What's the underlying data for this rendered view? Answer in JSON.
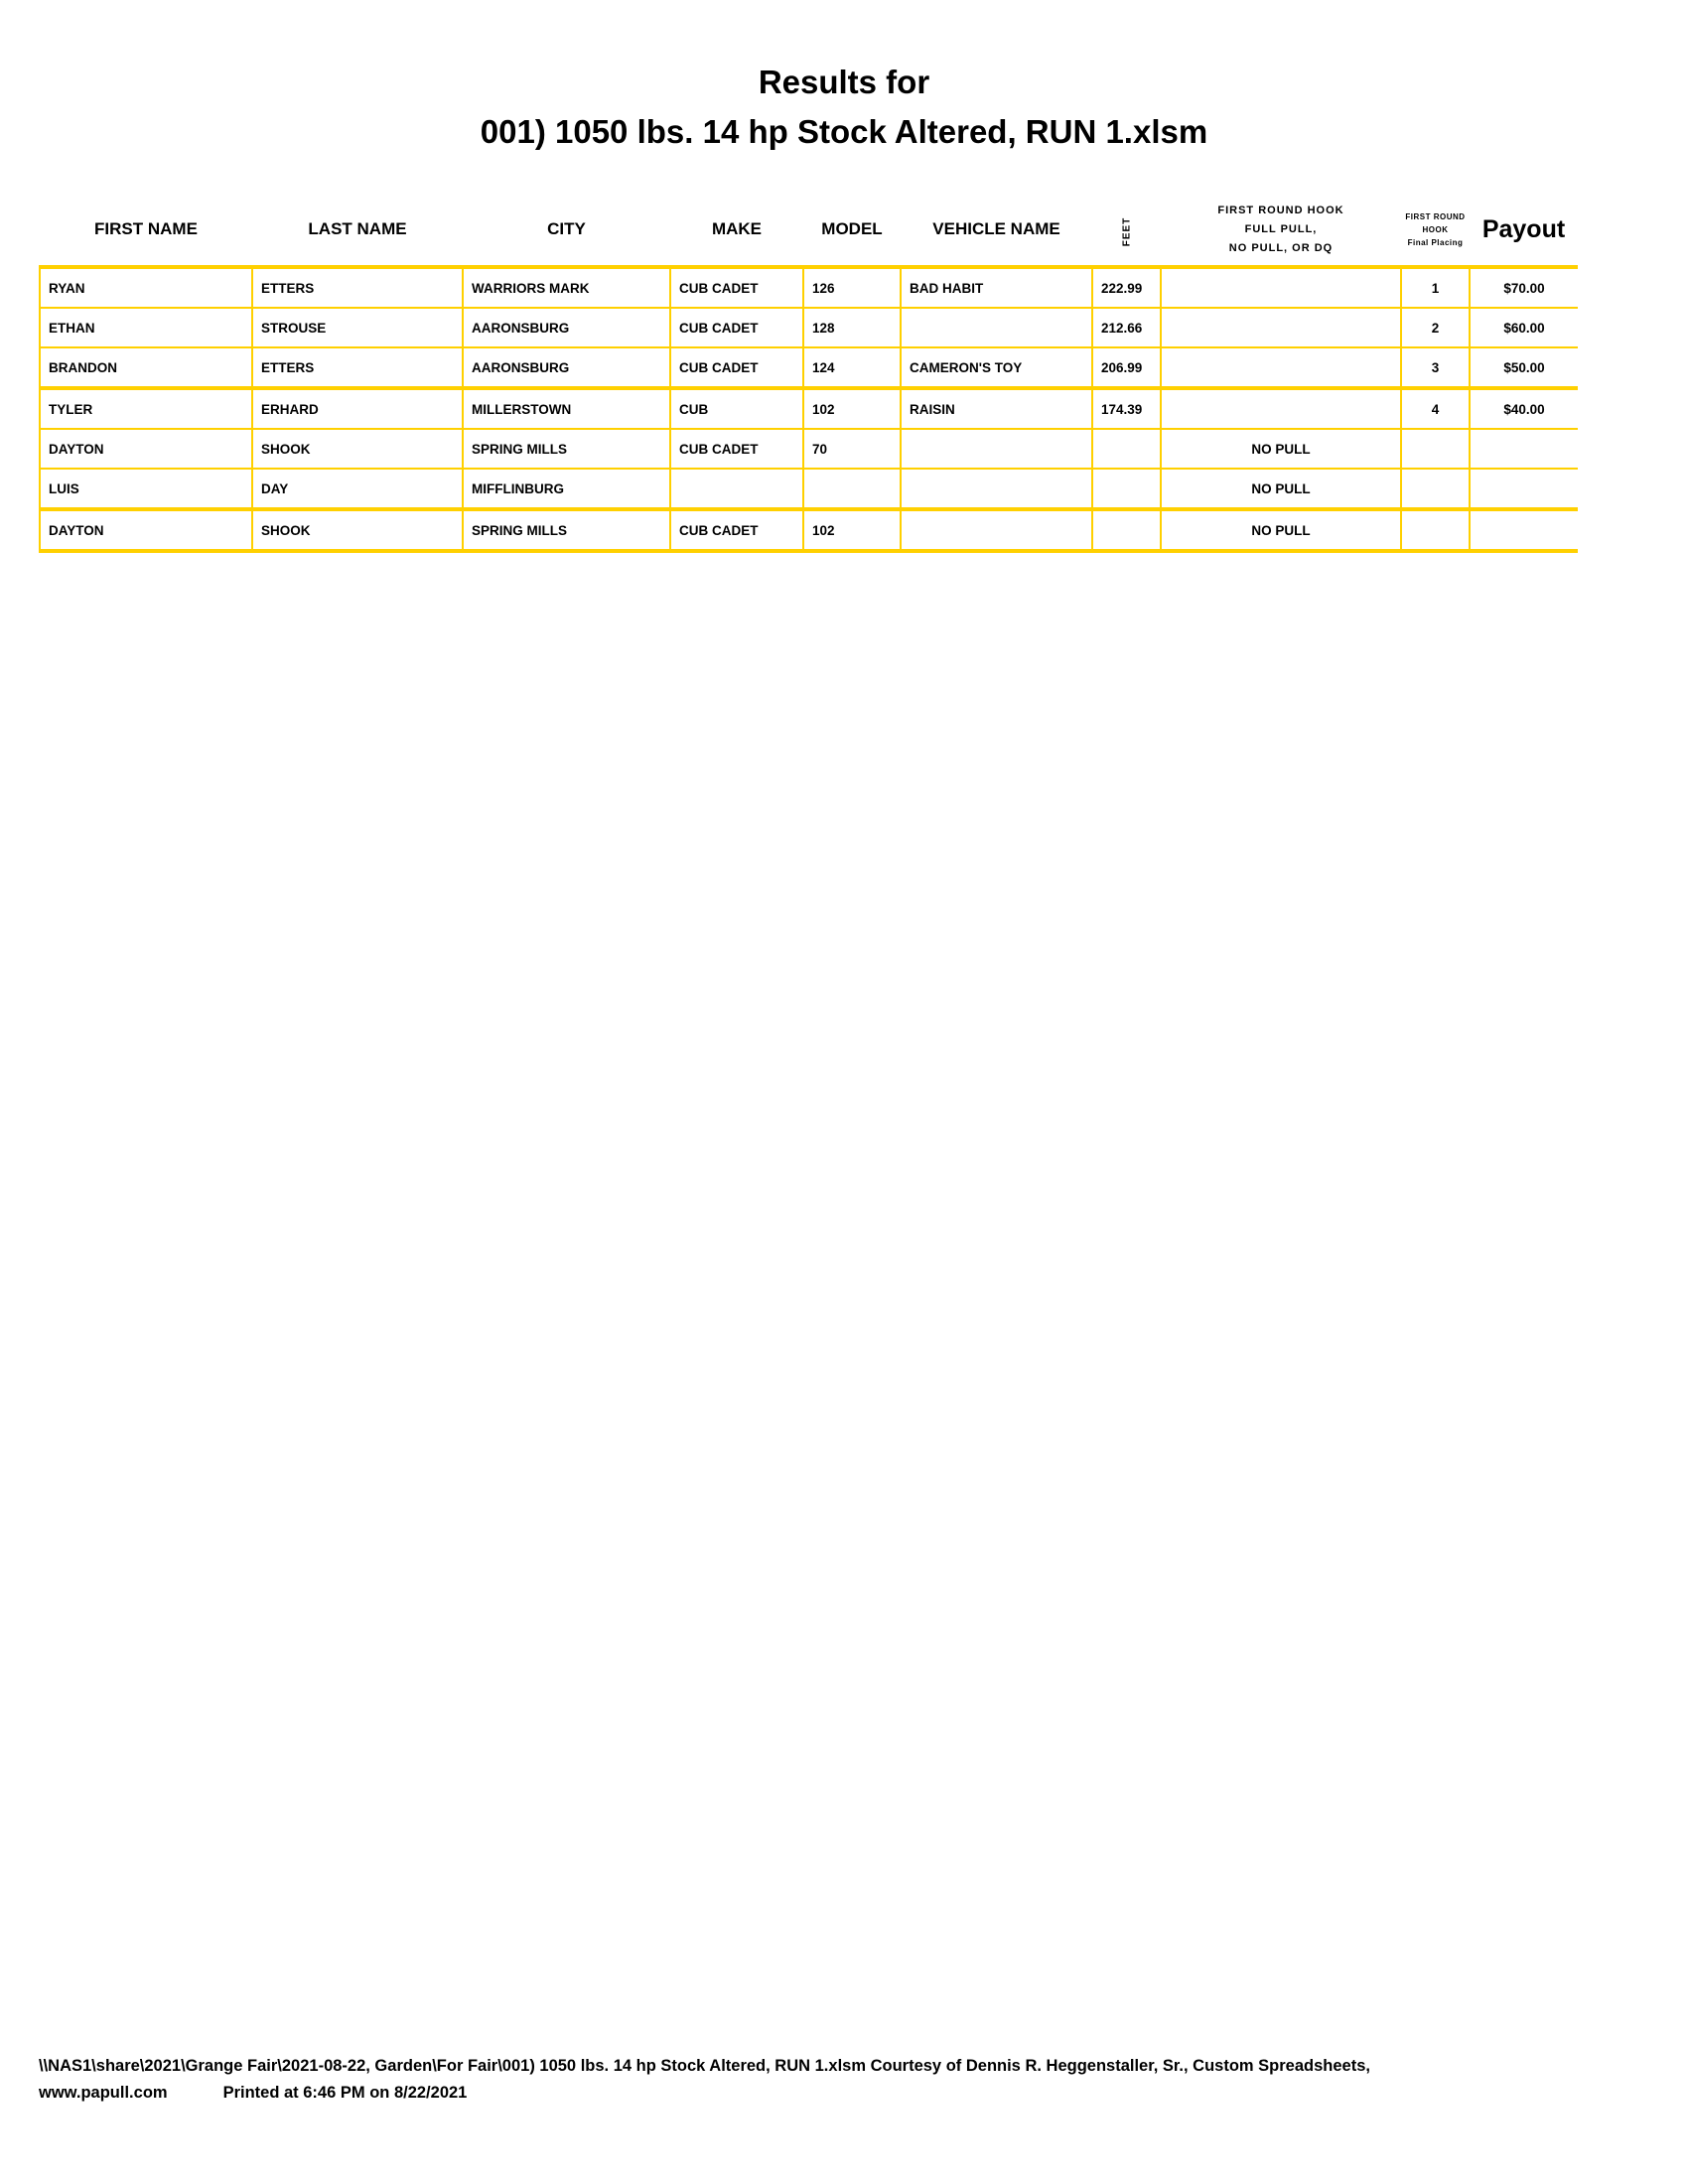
{
  "title": {
    "line1": "Results for",
    "line2": "001) 1050 lbs. 14 hp Stock Altered, RUN 1.xlsm"
  },
  "table": {
    "headers": {
      "first_name": "FIRST NAME",
      "last_name": "LAST NAME",
      "city": "CITY",
      "make": "MAKE",
      "model": "MODEL",
      "vehicle_name": "VEHICLE NAME",
      "feet": "FEET",
      "hook_line1": "FIRST ROUND HOOK",
      "hook_line2": "FULL PULL,",
      "hook_line3": "NO PULL, OR DQ",
      "placing_line1": "FIRST ROUND",
      "placing_line2": "HOOK",
      "placing_line3": "Final Placing",
      "payout": "Payout"
    },
    "rows": [
      {
        "first": "RYAN",
        "last": "ETTERS",
        "city": "WARRIORS MARK",
        "make": "CUB CADET",
        "model": "126",
        "vehicle": "BAD HABIT",
        "feet": "222.99",
        "hook": "",
        "place": "1",
        "payout": "$70.00"
      },
      {
        "first": "ETHAN",
        "last": "STROUSE",
        "city": "AARONSBURG",
        "make": "CUB CADET",
        "model": "128",
        "vehicle": "",
        "feet": "212.66",
        "hook": "",
        "place": "2",
        "payout": "$60.00"
      },
      {
        "first": "BRANDON",
        "last": "ETTERS",
        "city": "AARONSBURG",
        "make": "CUB CADET",
        "model": "124",
        "vehicle": "CAMERON'S TOY",
        "feet": "206.99",
        "hook": "",
        "place": "3",
        "payout": "$50.00"
      },
      {
        "first": "TYLER",
        "last": "ERHARD",
        "city": "MILLERSTOWN",
        "make": "CUB",
        "model": "102",
        "vehicle": "RAISIN",
        "feet": "174.39",
        "hook": "",
        "place": "4",
        "payout": "$40.00"
      },
      {
        "first": "DAYTON",
        "last": "SHOOK",
        "city": "SPRING MILLS",
        "make": "CUB CADET",
        "model": "70",
        "vehicle": "",
        "feet": "",
        "hook": "NO PULL",
        "place": "",
        "payout": ""
      },
      {
        "first": "LUIS",
        "last": "DAY",
        "city": "MIFFLINBURG",
        "make": "",
        "model": "",
        "vehicle": "",
        "feet": "",
        "hook": "NO PULL",
        "place": "",
        "payout": ""
      },
      {
        "first": "DAYTON",
        "last": "SHOOK",
        "city": "SPRING MILLS",
        "make": "CUB CADET",
        "model": "102",
        "vehicle": "",
        "feet": "",
        "hook": "NO PULL",
        "place": "",
        "payout": ""
      }
    ]
  },
  "footer": {
    "path": "\\\\NAS1\\share\\2021\\Grange Fair\\2021-08-22, Garden\\For Fair\\001) 1050 lbs. 14 hp Stock Altered, RUN 1.xlsm  Courtesy of Dennis R. Heggenstaller, Sr., Custom Spreadsheets,",
    "website": "www.papull.com",
    "printed": "Printed at 6:46 PM on 8/22/2021"
  },
  "colors": {
    "grid": "#FFD000"
  }
}
